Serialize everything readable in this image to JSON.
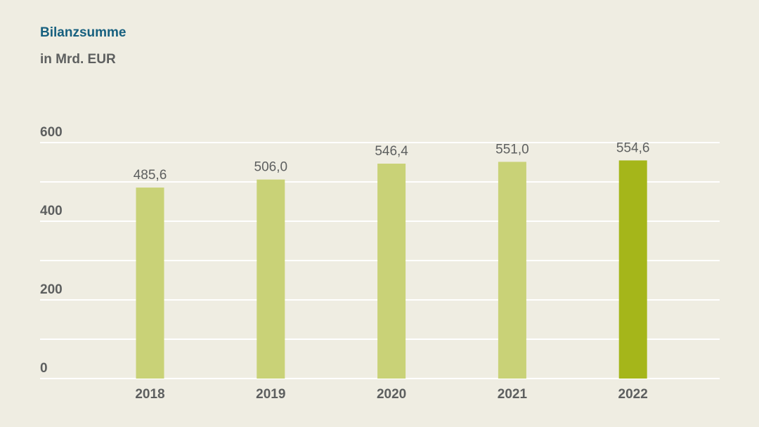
{
  "chart_data": {
    "type": "bar",
    "title": "Bilanzsumme",
    "subtitle": "in Mrd. EUR",
    "categories": [
      "2018",
      "2019",
      "2020",
      "2021",
      "2022"
    ],
    "values": [
      485.6,
      506.0,
      546.4,
      551.0,
      554.6
    ],
    "value_labels": [
      "485,6",
      "506,0",
      "546,4",
      "551,0",
      "554,6"
    ],
    "ylim": [
      0,
      600
    ],
    "yticks": [
      0,
      200,
      400,
      600
    ],
    "ytick_labels": [
      "0",
      "200",
      "400",
      "600"
    ],
    "grid": true,
    "colors": {
      "bar": "#c9d277",
      "bar_highlight": "#a5b61a",
      "grid": "#ffffff",
      "text": "#5d5f5f",
      "title": "#17607f"
    },
    "highlight_index": 4
  }
}
